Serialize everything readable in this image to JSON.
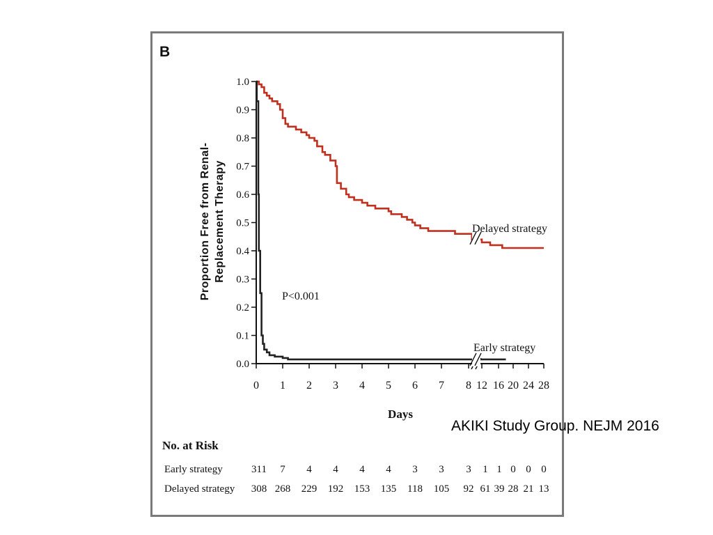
{
  "panel_label": "B",
  "citation": "AKIKI Study Group. NEJM 2016",
  "chart_data": {
    "type": "line",
    "subtype": "kaplan-meier step",
    "title": "",
    "ylabel_line1": "Proportion Free from Renal-",
    "ylabel_line2": "Replacement Therapy",
    "xlabel": "Days",
    "ylim": [
      0,
      1.0
    ],
    "yticks": [
      "0.0",
      "0.1",
      "0.2",
      "0.3",
      "0.4",
      "0.5",
      "0.6",
      "0.7",
      "0.8",
      "0.9",
      "1.0"
    ],
    "xticks": [
      "0",
      "1",
      "2",
      "3",
      "4",
      "5",
      "6",
      "7",
      "8",
      "12",
      "16",
      "20",
      "24",
      "28"
    ],
    "x_axis_break_after": "8",
    "annotation": "P<0.001",
    "grid": false,
    "colors": {
      "delayed": "#c0301f",
      "early": "#222222",
      "axis": "#111111"
    },
    "series": [
      {
        "name": "Delayed strategy",
        "points": [
          [
            0,
            1.0
          ],
          [
            0.1,
            0.99
          ],
          [
            0.2,
            0.98
          ],
          [
            0.3,
            0.96
          ],
          [
            0.4,
            0.95
          ],
          [
            0.5,
            0.94
          ],
          [
            0.6,
            0.93
          ],
          [
            0.8,
            0.92
          ],
          [
            0.9,
            0.9
          ],
          [
            1.0,
            0.87
          ],
          [
            1.1,
            0.85
          ],
          [
            1.2,
            0.84
          ],
          [
            1.5,
            0.83
          ],
          [
            1.7,
            0.82
          ],
          [
            1.9,
            0.81
          ],
          [
            2.0,
            0.8
          ],
          [
            2.2,
            0.79
          ],
          [
            2.3,
            0.77
          ],
          [
            2.5,
            0.75
          ],
          [
            2.6,
            0.74
          ],
          [
            2.8,
            0.72
          ],
          [
            3.0,
            0.7
          ],
          [
            3.05,
            0.64
          ],
          [
            3.2,
            0.62
          ],
          [
            3.4,
            0.6
          ],
          [
            3.5,
            0.59
          ],
          [
            3.7,
            0.58
          ],
          [
            4.0,
            0.57
          ],
          [
            4.2,
            0.56
          ],
          [
            4.5,
            0.55
          ],
          [
            5.0,
            0.54
          ],
          [
            5.1,
            0.53
          ],
          [
            5.5,
            0.52
          ],
          [
            5.7,
            0.51
          ],
          [
            5.9,
            0.5
          ],
          [
            6.0,
            0.49
          ],
          [
            6.2,
            0.48
          ],
          [
            6.5,
            0.47
          ],
          [
            7.0,
            0.47
          ],
          [
            7.5,
            0.46
          ],
          [
            8.0,
            0.46
          ],
          [
            9,
            0.44
          ],
          [
            12,
            0.43
          ],
          [
            14,
            0.42
          ],
          [
            16,
            0.42
          ],
          [
            17,
            0.41
          ],
          [
            20,
            0.41
          ],
          [
            24,
            0.41
          ],
          [
            28,
            0.41
          ]
        ]
      },
      {
        "name": "Early strategy",
        "points": [
          [
            0,
            1.0
          ],
          [
            0.02,
            0.93
          ],
          [
            0.08,
            0.6
          ],
          [
            0.1,
            0.4
          ],
          [
            0.15,
            0.25
          ],
          [
            0.2,
            0.1
          ],
          [
            0.25,
            0.07
          ],
          [
            0.3,
            0.05
          ],
          [
            0.4,
            0.04
          ],
          [
            0.5,
            0.03
          ],
          [
            0.7,
            0.025
          ],
          [
            1.0,
            0.02
          ],
          [
            1.2,
            0.015
          ],
          [
            2,
            0.015
          ],
          [
            4,
            0.015
          ],
          [
            6,
            0.015
          ],
          [
            8,
            0.015
          ],
          [
            12,
            0.015
          ],
          [
            16,
            0.015
          ],
          [
            18,
            0.015
          ]
        ]
      }
    ],
    "labels": {
      "delayed": "Delayed strategy",
      "early": "Early strategy"
    },
    "risk_table": {
      "title": "No. at Risk",
      "rows": [
        {
          "label": "Early strategy",
          "values": [
            "311",
            "7",
            "4",
            "4",
            "4",
            "4",
            "3",
            "3",
            "3",
            "1",
            "1",
            "0",
            "0",
            "0"
          ]
        },
        {
          "label": "Delayed strategy",
          "values": [
            "308",
            "268",
            "229",
            "192",
            "153",
            "135",
            "118",
            "105",
            "92",
            "61",
            "39",
            "28",
            "21",
            "13"
          ]
        }
      ]
    }
  }
}
